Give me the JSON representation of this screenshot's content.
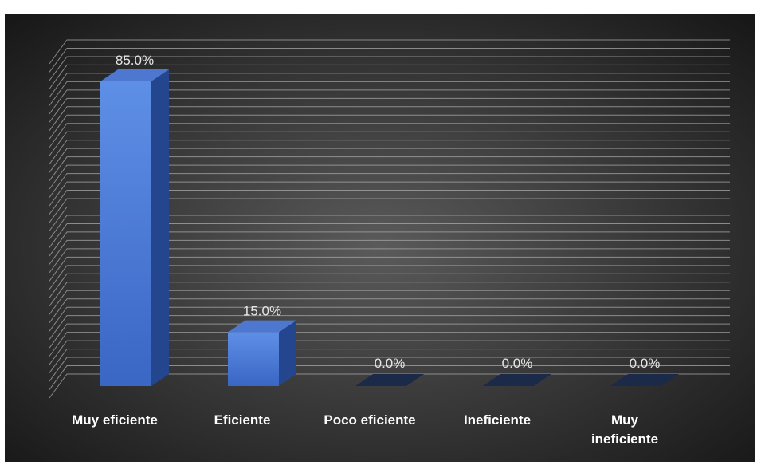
{
  "chart_data": {
    "type": "bar",
    "categories": [
      "Muy eficiente",
      "Eficiente",
      "Poco eficiente",
      "Ineficiente",
      "Muy ineficiente"
    ],
    "category_label_lines": [
      [
        "Muy eficiente"
      ],
      [
        "Eficiente"
      ],
      [
        "Poco eficiente"
      ],
      [
        "Ineficiente"
      ],
      [
        "Muy",
        "ineficiente"
      ]
    ],
    "values": [
      85.0,
      15.0,
      0.0,
      0.0,
      0.0
    ],
    "data_labels": [
      "85.0%",
      "15.0%",
      "0.0%",
      "0.0%",
      "0.0%"
    ],
    "ylim": [
      0,
      85
    ],
    "three_d": true,
    "grid": true,
    "legend": "none"
  },
  "colors": {
    "background_center": "#5a5a5a",
    "background_edge": "#141414",
    "bar_front_light": "#5e8fe6",
    "bar_front_dark": "#3a66c4",
    "bar_side": "#24468f",
    "bar_top": "#4e78cf",
    "zero_bar": "#1c2a4a",
    "gridline": "#a9a9a9",
    "data_label": "#e6e6e6",
    "category_label": "#ffffff"
  }
}
